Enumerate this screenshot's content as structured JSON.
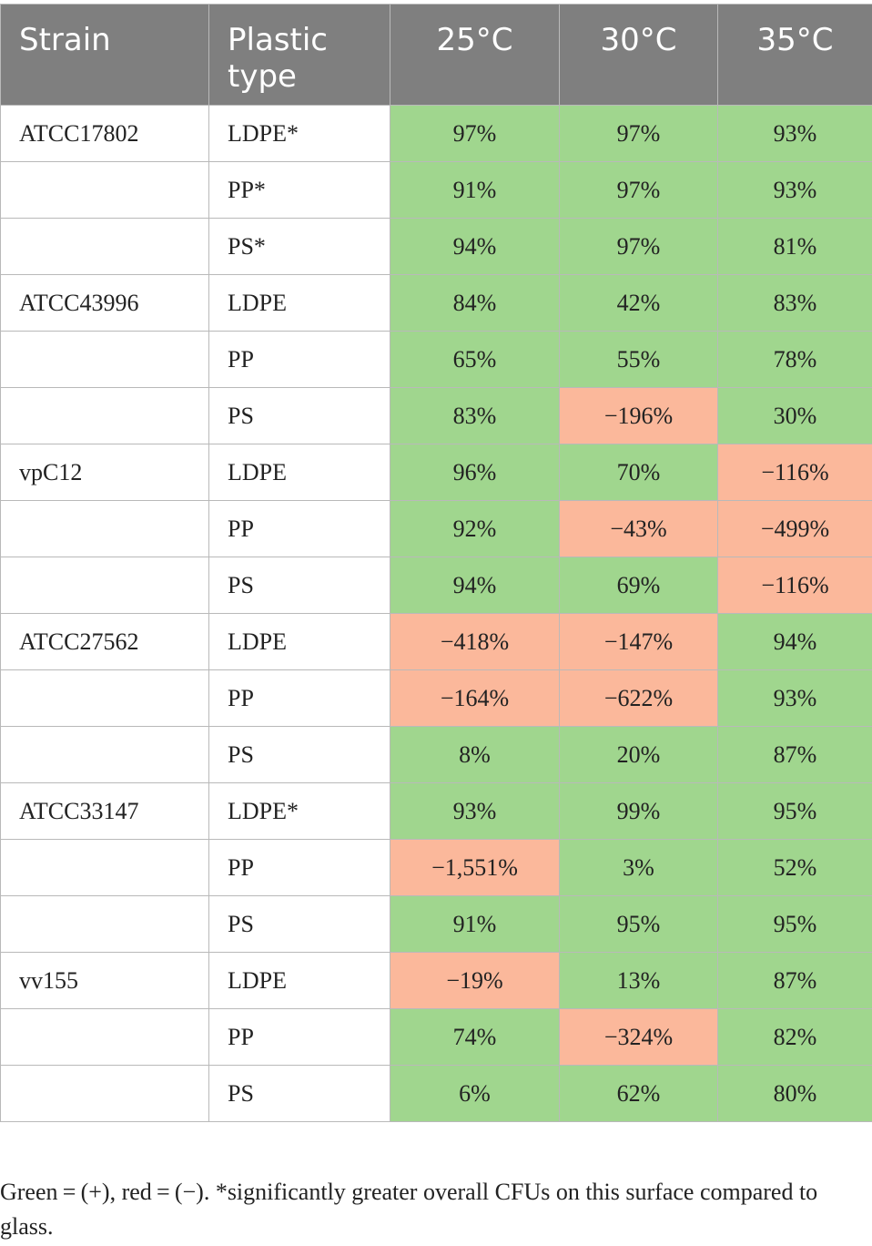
{
  "table": {
    "headers": [
      "Strain",
      "Plastic type",
      "25°C",
      "30°C",
      "35°C"
    ],
    "rows": [
      {
        "strain": "ATCC17802",
        "plastic": "LDPE*",
        "values": [
          "97%",
          "97%",
          "93%"
        ],
        "signs": [
          "+",
          "+",
          "+"
        ]
      },
      {
        "strain": "",
        "plastic": "PP*",
        "values": [
          "91%",
          "97%",
          "93%"
        ],
        "signs": [
          "+",
          "+",
          "+"
        ]
      },
      {
        "strain": "",
        "plastic": "PS*",
        "values": [
          "94%",
          "97%",
          "81%"
        ],
        "signs": [
          "+",
          "+",
          "+"
        ]
      },
      {
        "strain": "ATCC43996",
        "plastic": "LDPE",
        "values": [
          "84%",
          "42%",
          "83%"
        ],
        "signs": [
          "+",
          "+",
          "+"
        ]
      },
      {
        "strain": "",
        "plastic": "PP",
        "values": [
          "65%",
          "55%",
          "78%"
        ],
        "signs": [
          "+",
          "+",
          "+"
        ]
      },
      {
        "strain": "",
        "plastic": "PS",
        "values": [
          "83%",
          "−196%",
          "30%"
        ],
        "signs": [
          "+",
          "-",
          "+"
        ]
      },
      {
        "strain": "vpC12",
        "plastic": "LDPE",
        "values": [
          "96%",
          "70%",
          "−116%"
        ],
        "signs": [
          "+",
          "+",
          "-"
        ]
      },
      {
        "strain": "",
        "plastic": "PP",
        "values": [
          "92%",
          "−43%",
          "−499%"
        ],
        "signs": [
          "+",
          "-",
          "-"
        ]
      },
      {
        "strain": "",
        "plastic": "PS",
        "values": [
          "94%",
          "69%",
          "−116%"
        ],
        "signs": [
          "+",
          "+",
          "-"
        ]
      },
      {
        "strain": "ATCC27562",
        "plastic": "LDPE",
        "values": [
          "−418%",
          "−147%",
          "94%"
        ],
        "signs": [
          "-",
          "-",
          "+"
        ]
      },
      {
        "strain": "",
        "plastic": "PP",
        "values": [
          "−164%",
          "−622%",
          "93%"
        ],
        "signs": [
          "-",
          "-",
          "+"
        ]
      },
      {
        "strain": "",
        "plastic": "PS",
        "values": [
          "8%",
          "20%",
          "87%"
        ],
        "signs": [
          "+",
          "+",
          "+"
        ]
      },
      {
        "strain": "ATCC33147",
        "plastic": "LDPE*",
        "values": [
          "93%",
          "99%",
          "95%"
        ],
        "signs": [
          "+",
          "+",
          "+"
        ]
      },
      {
        "strain": "",
        "plastic": "PP",
        "values": [
          "−1,551%",
          "3%",
          "52%"
        ],
        "signs": [
          "-",
          "+",
          "+"
        ]
      },
      {
        "strain": "",
        "plastic": "PS",
        "values": [
          "91%",
          "95%",
          "95%"
        ],
        "signs": [
          "+",
          "+",
          "+"
        ]
      },
      {
        "strain": "vv155",
        "plastic": "LDPE",
        "values": [
          "−19%",
          "13%",
          "87%"
        ],
        "signs": [
          "-",
          "+",
          "+"
        ]
      },
      {
        "strain": "",
        "plastic": "PP",
        "values": [
          "74%",
          "−324%",
          "82%"
        ],
        "signs": [
          "+",
          "-",
          "+"
        ]
      },
      {
        "strain": "",
        "plastic": "PS",
        "values": [
          "6%",
          "62%",
          "80%"
        ],
        "signs": [
          "+",
          "+",
          "+"
        ]
      }
    ]
  },
  "footnote": "Green = (+), red = (−). *significantly greater overall CFUs on this surface compared to glass.",
  "colors": {
    "header_bg": "#7f7f7f",
    "positive": "#a0d68e",
    "negative": "#fbb89b",
    "border": "#b9b9b9"
  }
}
